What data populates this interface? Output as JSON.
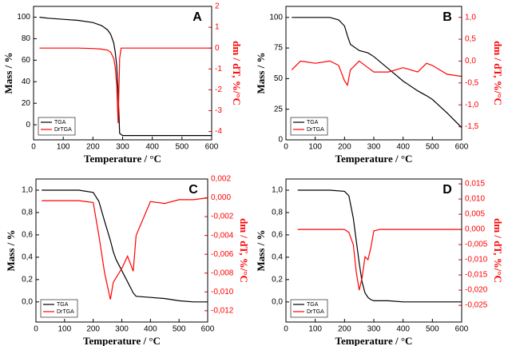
{
  "chart_data": [
    {
      "type": "line",
      "label": "A",
      "xlabel": "Temperature / °C",
      "ylabel": "Mass / %",
      "y2label": "dm / dT, %/°C",
      "legend": "lower left",
      "x": [
        20,
        50,
        100,
        150,
        200,
        230,
        250,
        260,
        270,
        275,
        280,
        285,
        290,
        295,
        300,
        350,
        400,
        450,
        500,
        550,
        600
      ],
      "xlim": [
        0,
        600
      ],
      "xticks": [
        0,
        100,
        200,
        300,
        400,
        500,
        600
      ],
      "ylim": [
        -14,
        110
      ],
      "yticks": [
        0,
        20,
        40,
        60,
        80,
        100
      ],
      "y2lim": [
        -4.4,
        2
      ],
      "y2ticks": [
        -4,
        -3,
        -2,
        -1,
        0,
        1,
        2
      ],
      "series": [
        {
          "name": "TGA",
          "color": "#000000",
          "values": [
            100,
            99,
            98,
            97,
            95,
            92,
            88,
            84,
            76,
            68,
            55,
            30,
            -8,
            -9,
            -10,
            -10,
            -10,
            -10,
            -10,
            -10,
            -10
          ]
        },
        {
          "name": "DrTGA",
          "color": "#ff0000",
          "axis": "y2",
          "values": [
            0,
            0,
            0,
            0,
            -0.02,
            -0.05,
            -0.1,
            -0.2,
            -0.5,
            -0.9,
            -1.8,
            -3.6,
            -0.5,
            0,
            0,
            0,
            0,
            0,
            0,
            0,
            0
          ]
        }
      ]
    },
    {
      "type": "line",
      "label": "B",
      "xlabel": "Temperature / °C",
      "ylabel": "Mass / %",
      "y2label": "dm / dT, %/°C",
      "legend": "lower left",
      "x": [
        20,
        50,
        100,
        150,
        180,
        200,
        210,
        220,
        250,
        280,
        300,
        350,
        400,
        450,
        480,
        500,
        550,
        600
      ],
      "xlim": [
        0,
        600
      ],
      "xticks": [
        0,
        100,
        200,
        300,
        400,
        500,
        600
      ],
      "ylim": [
        0,
        109
      ],
      "yticks": [
        0,
        25,
        50,
        75,
        100
      ],
      "y2lim": [
        -1.8,
        1.25
      ],
      "y2ticks": [
        {
          "value": -1.5,
          "label": "-1,5"
        },
        {
          "value": -1,
          "label": "-1,0"
        },
        {
          "value": -0.5,
          "label": "-0,5"
        },
        {
          "value": 0,
          "label": "0,0"
        },
        {
          "value": 0.5,
          "label": "0,5"
        },
        {
          "value": 1,
          "label": "1,0"
        }
      ],
      "series": [
        {
          "name": "TGA",
          "color": "#000000",
          "values": [
            100,
            100,
            100,
            100,
            98,
            93,
            85,
            78,
            73,
            71,
            68,
            58,
            48,
            40,
            36,
            33,
            22,
            10
          ]
        },
        {
          "name": "DrTGA",
          "color": "#ff0000",
          "axis": "y2",
          "values": [
            -0.2,
            0,
            -0.05,
            0,
            -0.1,
            -0.45,
            -0.55,
            -0.2,
            0,
            -0.15,
            -0.25,
            -0.25,
            -0.15,
            -0.25,
            -0.05,
            -0.1,
            -0.3,
            -0.35
          ]
        }
      ]
    },
    {
      "type": "line",
      "label": "C",
      "xlabel": "Temperature / °C",
      "ylabel": "Mass / %",
      "y2label": "dm / dT, %/°C",
      "legend": "lower left",
      "x": [
        20,
        100,
        150,
        200,
        220,
        240,
        260,
        270,
        280,
        300,
        320,
        340,
        350,
        400,
        450,
        500,
        550,
        600
      ],
      "xlim": [
        0,
        600
      ],
      "xticks": [
        0,
        100,
        200,
        300,
        400,
        500,
        600
      ],
      "ylim": [
        -0.18,
        1.1
      ],
      "yticks": [
        {
          "value": 0,
          "label": "0,0"
        },
        {
          "value": 0.2,
          "label": "0,2"
        },
        {
          "value": 0.4,
          "label": "0,4"
        },
        {
          "value": 0.6,
          "label": "0,6"
        },
        {
          "value": 0.8,
          "label": "0,8"
        },
        {
          "value": 1,
          "label": "1,0"
        }
      ],
      "y2lim": [
        -0.0132,
        0.002
      ],
      "y2ticks": [
        {
          "value": -0.012,
          "label": "-0,012"
        },
        {
          "value": -0.01,
          "label": "-0,010"
        },
        {
          "value": -0.008,
          "label": "-0,008"
        },
        {
          "value": -0.006,
          "label": "-0,006"
        },
        {
          "value": -0.004,
          "label": "-0,004"
        },
        {
          "value": -0.002,
          "label": "-0,002"
        },
        {
          "value": 0,
          "label": "0,000"
        },
        {
          "value": 0.002,
          "label": "0,002"
        }
      ],
      "series": [
        {
          "name": "TGA",
          "color": "#000000",
          "values": [
            1,
            1,
            1,
            0.98,
            0.9,
            0.72,
            0.55,
            0.45,
            0.38,
            0.28,
            0.18,
            0.08,
            0.05,
            0.04,
            0.03,
            0.01,
            0,
            0
          ]
        },
        {
          "name": "DrTGA",
          "color": "#ff0000",
          "axis": "y2",
          "values": [
            -0.0003,
            -0.0003,
            -0.0003,
            -0.0005,
            -0.004,
            -0.008,
            -0.0108,
            -0.009,
            -0.0085,
            -0.0075,
            -0.0062,
            -0.0078,
            -0.004,
            -0.0004,
            -0.0006,
            -0.0002,
            -0.0002,
            0
          ]
        }
      ]
    },
    {
      "type": "line",
      "label": "D",
      "xlabel": "Temperature / °C",
      "ylabel": "Mass / %",
      "y2label": "dm / dT, %/°C",
      "legend": "lower left",
      "x": [
        40,
        100,
        150,
        200,
        215,
        230,
        240,
        250,
        260,
        270,
        280,
        290,
        300,
        320,
        350,
        400,
        450,
        500,
        550,
        600
      ],
      "xlim": [
        0,
        600
      ],
      "xticks": [
        0,
        100,
        200,
        300,
        400,
        500,
        600
      ],
      "ylim": [
        -0.18,
        1.1
      ],
      "yticks": [
        {
          "value": 0,
          "label": "0,0"
        },
        {
          "value": 0.2,
          "label": "0,2"
        },
        {
          "value": 0.4,
          "label": "0,4"
        },
        {
          "value": 0.6,
          "label": "0,6"
        },
        {
          "value": 0.8,
          "label": "0,8"
        },
        {
          "value": 1,
          "label": "1,0"
        }
      ],
      "y2lim": [
        -0.0305,
        0.0166
      ],
      "y2ticks": [
        {
          "value": -0.025,
          "label": "-0,025"
        },
        {
          "value": -0.02,
          "label": "-0,020"
        },
        {
          "value": -0.015,
          "label": "-0,015"
        },
        {
          "value": -0.01,
          "label": "-0,010"
        },
        {
          "value": -0.005,
          "label": "-0,005"
        },
        {
          "value": 0,
          "label": "0,000"
        },
        {
          "value": 0.005,
          "label": "0,005"
        },
        {
          "value": 0.01,
          "label": "0,010"
        },
        {
          "value": 0.015,
          "label": "0,015"
        }
      ],
      "series": [
        {
          "name": "TGA",
          "color": "#000000",
          "values": [
            1,
            1,
            1,
            0.99,
            0.95,
            0.75,
            0.55,
            0.35,
            0.18,
            0.08,
            0.04,
            0.02,
            0.01,
            0.01,
            0.01,
            0,
            0,
            0,
            0,
            0
          ]
        },
        {
          "name": "DrTGA",
          "color": "#ff0000",
          "axis": "y2",
          "values": [
            0,
            0,
            0,
            0,
            -0.001,
            -0.005,
            -0.014,
            -0.02,
            -0.016,
            -0.009,
            -0.01,
            -0.006,
            -0.0005,
            0,
            0,
            0,
            0,
            0,
            0,
            0
          ]
        }
      ]
    }
  ]
}
